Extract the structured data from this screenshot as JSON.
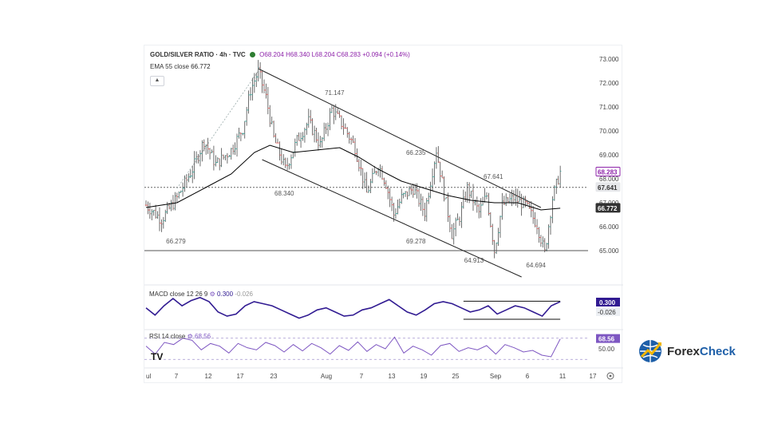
{
  "header": {
    "symbol": "GOLD/SILVER RATIO · 4h · TVC",
    "open": "O68.204",
    "high": "H68.340",
    "low": "L68.204",
    "close": "C68.283",
    "change": "+0.094 (+0.14%)",
    "ema_label": "EMA 55 close",
    "ema_value": "66.772"
  },
  "macd_header": {
    "label": "MACD close 12 26 9",
    "v1": "0.300",
    "v2": "-0.026"
  },
  "rsi_header": {
    "label": "RSI 14 close",
    "v1": "68.56"
  },
  "brand": {
    "pre": "Forex",
    "x": "Check"
  },
  "colors": {
    "up": "#26a69a",
    "down": "#ef5350",
    "ema": "#000000",
    "macd": "#311b92",
    "rsi": "#7e57c2",
    "bar": "#4a4a4a"
  },
  "chart_data": {
    "type": "line",
    "title": "GOLD/SILVER RATIO · 4h · TVC",
    "x_ticks": [
      "ul",
      "7",
      "12",
      "17",
      "23",
      "Aug",
      "7",
      "13",
      "19",
      "25",
      "Sep",
      "6",
      "11",
      "17"
    ],
    "y_ticks": [
      "73.000",
      "72.000",
      "71.000",
      "70.000",
      "69.000",
      "68.000",
      "67.000",
      "66.000",
      "65.000"
    ],
    "ylim": [
      64.3,
      73.3
    ],
    "price_labels": {
      "last": "68.283",
      "level": "67.641",
      "ema": "66.772"
    },
    "annotations": [
      "66.279",
      "72.5",
      "71.147",
      "68.340",
      "69.278",
      "66.235",
      "67.641",
      "64.913",
      "64.694"
    ],
    "annotation_text": [
      "66.279",
      "71.147",
      "68.340",
      "69.278",
      "66.235",
      "67.641",
      "64.913",
      "64.694"
    ],
    "price_series": [
      {
        "x": 0,
        "y": 66.9
      },
      {
        "x": 4,
        "y": 66.3
      },
      {
        "x": 8,
        "y": 67.2
      },
      {
        "x": 12,
        "y": 68.4
      },
      {
        "x": 15,
        "y": 69.6
      },
      {
        "x": 18,
        "y": 68.6
      },
      {
        "x": 22,
        "y": 69.2
      },
      {
        "x": 25,
        "y": 70.1
      },
      {
        "x": 27,
        "y": 71.7
      },
      {
        "x": 29,
        "y": 72.5
      },
      {
        "x": 31,
        "y": 71.4
      },
      {
        "x": 33,
        "y": 69.7
      },
      {
        "x": 36,
        "y": 68.4
      },
      {
        "x": 39,
        "y": 69.6
      },
      {
        "x": 42,
        "y": 70.4
      },
      {
        "x": 45,
        "y": 69.4
      },
      {
        "x": 48,
        "y": 70.9
      },
      {
        "x": 51,
        "y": 70.2
      },
      {
        "x": 54,
        "y": 69.3
      },
      {
        "x": 57,
        "y": 67.4
      },
      {
        "x": 60,
        "y": 68.6
      },
      {
        "x": 62,
        "y": 67.8
      },
      {
        "x": 64,
        "y": 66.5
      },
      {
        "x": 66,
        "y": 67.2
      },
      {
        "x": 69,
        "y": 67.6
      },
      {
        "x": 72,
        "y": 66.6
      },
      {
        "x": 75,
        "y": 69.2
      },
      {
        "x": 77,
        "y": 67.4
      },
      {
        "x": 79,
        "y": 65.7
      },
      {
        "x": 81,
        "y": 66.4
      },
      {
        "x": 83,
        "y": 67.6
      },
      {
        "x": 86,
        "y": 66.6
      },
      {
        "x": 88,
        "y": 67.3
      },
      {
        "x": 90,
        "y": 65.0
      },
      {
        "x": 92,
        "y": 66.9
      },
      {
        "x": 95,
        "y": 67.2
      },
      {
        "x": 98,
        "y": 66.9
      },
      {
        "x": 101,
        "y": 66.1
      },
      {
        "x": 103,
        "y": 64.9
      },
      {
        "x": 105,
        "y": 67.2
      },
      {
        "x": 107,
        "y": 68.28
      }
    ],
    "ema_series": [
      {
        "x": 0,
        "y": 66.8
      },
      {
        "x": 8,
        "y": 67.0
      },
      {
        "x": 15,
        "y": 67.6
      },
      {
        "x": 22,
        "y": 68.2
      },
      {
        "x": 28,
        "y": 69.1
      },
      {
        "x": 32,
        "y": 69.4
      },
      {
        "x": 38,
        "y": 69.1
      },
      {
        "x": 44,
        "y": 69.2
      },
      {
        "x": 50,
        "y": 69.3
      },
      {
        "x": 55,
        "y": 68.9
      },
      {
        "x": 60,
        "y": 68.4
      },
      {
        "x": 66,
        "y": 67.9
      },
      {
        "x": 72,
        "y": 67.6
      },
      {
        "x": 78,
        "y": 67.3
      },
      {
        "x": 84,
        "y": 67.1
      },
      {
        "x": 90,
        "y": 67.0
      },
      {
        "x": 96,
        "y": 67.0
      },
      {
        "x": 102,
        "y": 66.7
      },
      {
        "x": 107,
        "y": 66.77
      }
    ],
    "channel_upper": [
      {
        "x": 29,
        "y": 72.6
      },
      {
        "x": 102,
        "y": 66.8
      }
    ],
    "channel_lower": [
      {
        "x": 30,
        "y": 68.8
      },
      {
        "x": 97,
        "y": 63.9
      }
    ],
    "support_level": 65.0,
    "dotted_level": 67.641,
    "macd": {
      "ylim": [
        -0.9,
        0.8
      ],
      "values": [
        0.0,
        -0.35,
        0.1,
        0.45,
        0.1,
        0.35,
        0.5,
        0.3,
        -0.2,
        -0.4,
        -0.3,
        0.1,
        0.3,
        0.2,
        0.1,
        -0.1,
        -0.3,
        -0.5,
        -0.35,
        -0.1,
        0.0,
        -0.2,
        -0.4,
        -0.35,
        -0.1,
        0.0,
        0.2,
        0.4,
        0.1,
        -0.2,
        -0.35,
        -0.1,
        0.2,
        0.3,
        0.2,
        0.0,
        -0.2,
        -0.1,
        0.1,
        -0.3,
        -0.1,
        0.1,
        0.0,
        -0.2,
        -0.4,
        0.1,
        0.3
      ],
      "signal_box": [
        "0.300",
        "-0.026"
      ],
      "trend_upper": [
        {
          "x": 82,
          "y": 0.32
        },
        {
          "x": 107,
          "y": 0.32
        }
      ],
      "trend_lower": [
        {
          "x": 82,
          "y": -0.55
        },
        {
          "x": 107,
          "y": -0.55
        }
      ]
    },
    "rsi": {
      "ylim": [
        20,
        80
      ],
      "values": [
        55,
        40,
        62,
        58,
        70,
        66,
        48,
        60,
        55,
        42,
        60,
        52,
        48,
        62,
        56,
        44,
        58,
        46,
        60,
        52,
        40,
        56,
        47,
        63,
        45,
        58,
        50,
        72,
        42,
        55,
        48,
        38,
        56,
        60,
        45,
        52,
        48,
        56,
        40,
        58,
        52,
        44,
        47,
        38,
        35,
        68.56
      ],
      "level_labels": [
        "68.56",
        "50.00"
      ]
    }
  }
}
